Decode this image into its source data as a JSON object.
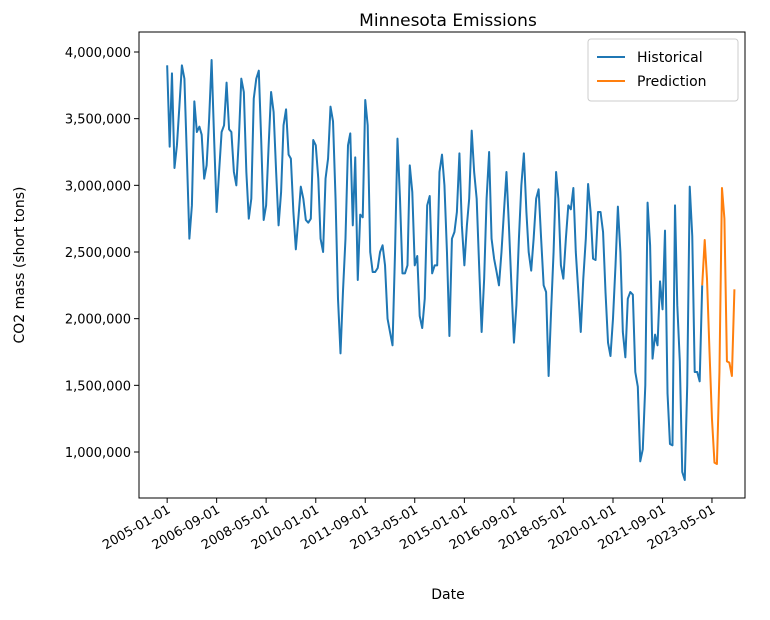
{
  "chart_data": {
    "type": "line",
    "title": "Minnesota Emissions",
    "x_label": "Date",
    "y_label": "CO2 mass (short tons)",
    "xlim": [
      "2004-01-21",
      "2024-06-10"
    ],
    "xticks": [
      "2005-01-01",
      "2006-09-01",
      "2008-05-01",
      "2010-01-01",
      "2011-09-01",
      "2013-05-01",
      "2015-01-01",
      "2016-09-01",
      "2018-05-01",
      "2020-01-01",
      "2021-09-01",
      "2023-05-01"
    ],
    "ylim": [
      655000,
      4150000
    ],
    "yticks": [
      {
        "value": 1000000,
        "label": "1,000,000"
      },
      {
        "value": 1500000,
        "label": "1,500,000"
      },
      {
        "value": 2000000,
        "label": "2,000,000"
      },
      {
        "value": 2500000,
        "label": "2,500,000"
      },
      {
        "value": 3000000,
        "label": "3,000,000"
      },
      {
        "value": 3500000,
        "label": "3,500,000"
      },
      {
        "value": 4000000,
        "label": "4,000,000"
      }
    ],
    "legend_position": "upper right",
    "series": [
      {
        "name": "Historical",
        "color": "#1f77b4",
        "x": [
          "2005-01-01",
          "2005-02-01",
          "2005-03-01",
          "2005-04-01",
          "2005-05-01",
          "2005-06-01",
          "2005-07-01",
          "2005-08-01",
          "2005-09-01",
          "2005-10-01",
          "2005-11-01",
          "2005-12-01",
          "2006-01-01",
          "2006-02-01",
          "2006-03-01",
          "2006-04-01",
          "2006-05-01",
          "2006-06-01",
          "2006-07-01",
          "2006-08-01",
          "2006-09-01",
          "2006-10-01",
          "2006-11-01",
          "2006-12-01",
          "2007-01-01",
          "2007-02-01",
          "2007-03-01",
          "2007-04-01",
          "2007-05-01",
          "2007-06-01",
          "2007-07-01",
          "2007-08-01",
          "2007-09-01",
          "2007-10-01",
          "2007-11-01",
          "2007-12-01",
          "2008-01-01",
          "2008-02-01",
          "2008-03-01",
          "2008-04-01",
          "2008-05-01",
          "2008-06-01",
          "2008-07-01",
          "2008-08-01",
          "2008-09-01",
          "2008-10-01",
          "2008-11-01",
          "2008-12-01",
          "2009-01-01",
          "2009-02-01",
          "2009-03-01",
          "2009-04-01",
          "2009-05-01",
          "2009-06-01",
          "2009-07-01",
          "2009-08-01",
          "2009-09-01",
          "2009-10-01",
          "2009-11-01",
          "2009-12-01",
          "2010-01-01",
          "2010-02-01",
          "2010-03-01",
          "2010-04-01",
          "2010-05-01",
          "2010-06-01",
          "2010-07-01",
          "2010-08-01",
          "2010-09-01",
          "2010-10-01",
          "2010-11-01",
          "2010-12-01",
          "2011-01-01",
          "2011-02-01",
          "2011-03-01",
          "2011-04-01",
          "2011-05-01",
          "2011-06-01",
          "2011-07-01",
          "2011-08-01",
          "2011-09-01",
          "2011-10-01",
          "2011-11-01",
          "2011-12-01",
          "2012-01-01",
          "2012-02-01",
          "2012-03-01",
          "2012-04-01",
          "2012-05-01",
          "2012-06-01",
          "2012-07-01",
          "2012-08-01",
          "2012-09-01",
          "2012-10-01",
          "2012-11-01",
          "2012-12-01",
          "2013-01-01",
          "2013-02-01",
          "2013-03-01",
          "2013-04-01",
          "2013-05-01",
          "2013-06-01",
          "2013-07-01",
          "2013-08-01",
          "2013-09-01",
          "2013-10-01",
          "2013-11-01",
          "2013-12-01",
          "2014-01-01",
          "2014-02-01",
          "2014-03-01",
          "2014-04-01",
          "2014-05-01",
          "2014-06-01",
          "2014-07-01",
          "2014-08-01",
          "2014-09-01",
          "2014-10-01",
          "2014-11-01",
          "2014-12-01",
          "2015-01-01",
          "2015-02-01",
          "2015-03-01",
          "2015-04-01",
          "2015-05-01",
          "2015-06-01",
          "2015-07-01",
          "2015-08-01",
          "2015-09-01",
          "2015-10-01",
          "2015-11-01",
          "2015-12-01",
          "2016-01-01",
          "2016-02-01",
          "2016-03-01",
          "2016-04-01",
          "2016-05-01",
          "2016-06-01",
          "2016-07-01",
          "2016-08-01",
          "2016-09-01",
          "2016-10-01",
          "2016-11-01",
          "2016-12-01",
          "2017-01-01",
          "2017-02-01",
          "2017-03-01",
          "2017-04-01",
          "2017-05-01",
          "2017-06-01",
          "2017-07-01",
          "2017-08-01",
          "2017-09-01",
          "2017-10-01",
          "2017-11-01",
          "2017-12-01",
          "2018-01-01",
          "2018-02-01",
          "2018-03-01",
          "2018-04-01",
          "2018-05-01",
          "2018-06-01",
          "2018-07-01",
          "2018-08-01",
          "2018-09-01",
          "2018-10-01",
          "2018-11-01",
          "2018-12-01",
          "2019-01-01",
          "2019-02-01",
          "2019-03-01",
          "2019-04-01",
          "2019-05-01",
          "2019-06-01",
          "2019-07-01",
          "2019-08-01",
          "2019-09-01",
          "2019-10-01",
          "2019-11-01",
          "2019-12-01",
          "2020-01-01",
          "2020-02-01",
          "2020-03-01",
          "2020-04-01",
          "2020-05-01",
          "2020-06-01",
          "2020-07-01",
          "2020-08-01",
          "2020-09-01",
          "2020-10-01",
          "2020-11-01",
          "2020-12-01",
          "2021-01-01",
          "2021-02-01",
          "2021-03-01",
          "2021-04-01",
          "2021-05-01",
          "2021-06-01",
          "2021-07-01",
          "2021-08-01",
          "2021-09-01",
          "2021-10-01",
          "2021-11-01",
          "2021-12-01",
          "2022-01-01",
          "2022-02-01",
          "2022-03-01",
          "2022-04-01",
          "2022-05-01",
          "2022-06-01",
          "2022-07-01",
          "2022-08-01",
          "2022-09-01",
          "2022-10-01",
          "2022-11-01",
          "2022-12-01",
          "2023-01-01"
        ],
        "values": [
          3900000,
          3290000,
          3840000,
          3130000,
          3300000,
          3600000,
          3900000,
          3800000,
          3200000,
          2600000,
          2850000,
          3630000,
          3400000,
          3440000,
          3380000,
          3050000,
          3150000,
          3500000,
          3940000,
          3350000,
          2800000,
          3100000,
          3400000,
          3450000,
          3770000,
          3420000,
          3400000,
          3100000,
          3000000,
          3350000,
          3800000,
          3700000,
          3100000,
          2750000,
          2900000,
          3650000,
          3800000,
          3860000,
          3350000,
          2740000,
          2850000,
          3300000,
          3700000,
          3550000,
          3100000,
          2700000,
          2950000,
          3450000,
          3570000,
          3230000,
          3200000,
          2800000,
          2520000,
          2750000,
          2990000,
          2900000,
          2740000,
          2720000,
          2750000,
          3340000,
          3300000,
          3050000,
          2600000,
          2500000,
          3050000,
          3200000,
          3590000,
          3480000,
          2900000,
          2150000,
          1740000,
          2200000,
          2600000,
          3300000,
          3390000,
          2700000,
          3210000,
          2290000,
          2780000,
          2760000,
          3640000,
          3450000,
          2500000,
          2350000,
          2350000,
          2380000,
          2500000,
          2550000,
          2400000,
          2000000,
          1900000,
          1800000,
          2500000,
          3350000,
          2900000,
          2340000,
          2340000,
          2400000,
          3150000,
          2950000,
          2400000,
          2470000,
          2020000,
          1930000,
          2150000,
          2850000,
          2920000,
          2340000,
          2400000,
          2400000,
          3100000,
          3230000,
          3000000,
          2500000,
          1870000,
          2600000,
          2650000,
          2800000,
          3240000,
          2700000,
          2400000,
          2700000,
          2900000,
          3410000,
          3100000,
          2900000,
          2400000,
          1900000,
          2300000,
          2900000,
          3250000,
          2600000,
          2450000,
          2350000,
          2250000,
          2500000,
          2800000,
          3100000,
          2700000,
          2250000,
          1820000,
          2100000,
          2600000,
          3000000,
          3240000,
          2800000,
          2500000,
          2360000,
          2600000,
          2900000,
          2970000,
          2600000,
          2250000,
          2200000,
          1570000,
          2050000,
          2500000,
          3100000,
          2900000,
          2400000,
          2300000,
          2600000,
          2850000,
          2820000,
          2980000,
          2500000,
          2200000,
          1900000,
          2300000,
          2600000,
          3010000,
          2800000,
          2450000,
          2440000,
          2800000,
          2800000,
          2650000,
          2200000,
          1820000,
          1720000,
          2000000,
          2400000,
          2840000,
          2500000,
          1900000,
          1710000,
          2150000,
          2200000,
          2180000,
          1600000,
          1490000,
          930000,
          1020000,
          1500000,
          2870000,
          2550000,
          1700000,
          1880000,
          1800000,
          2280000,
          2070000,
          2660000,
          1440000,
          1060000,
          1050000,
          2850000,
          2100000,
          1680000,
          850000,
          790000,
          1500000,
          2990000,
          2620000,
          1600000,
          1600000,
          1530000,
          2250000
        ]
      },
      {
        "name": "Prediction",
        "color": "#ff7f0e",
        "x": [
          "2023-01-01",
          "2023-02-01",
          "2023-03-01",
          "2023-04-01",
          "2023-05-01",
          "2023-06-01",
          "2023-07-01",
          "2023-08-01",
          "2023-09-01",
          "2023-10-01",
          "2023-11-01",
          "2023-12-01",
          "2024-01-01",
          "2024-02-01"
        ],
        "values": [
          2250000,
          2590000,
          2300000,
          1750000,
          1250000,
          920000,
          910000,
          1600000,
          2980000,
          2750000,
          1680000,
          1670000,
          1570000,
          2220000
        ]
      }
    ]
  }
}
